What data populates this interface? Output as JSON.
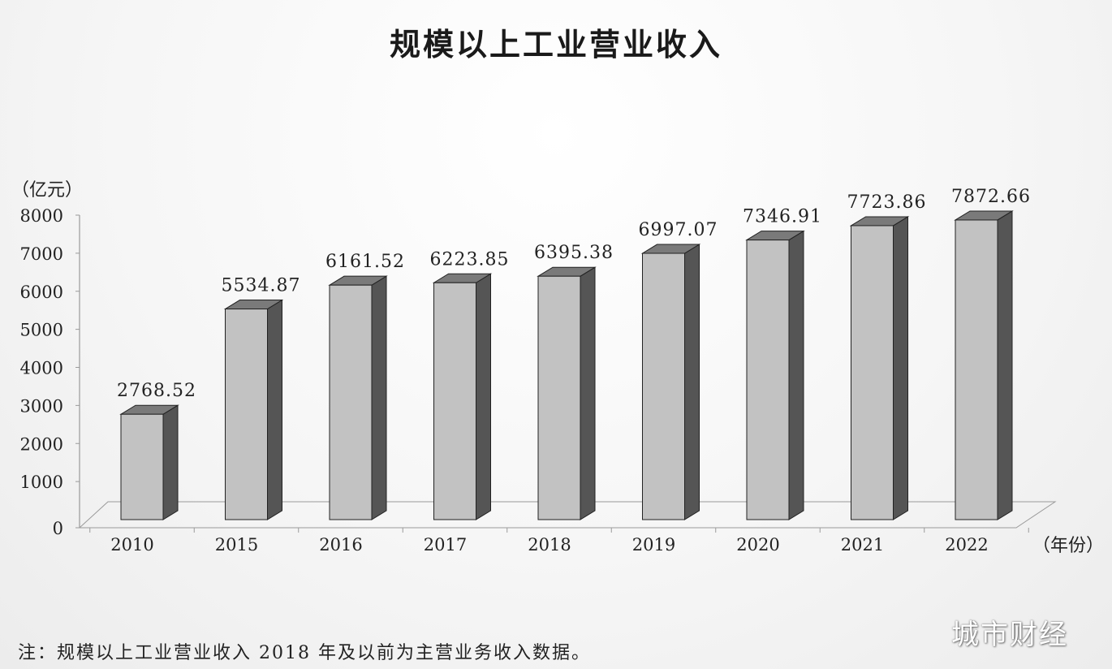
{
  "title": "规模以上工业营业收入",
  "chart_data": {
    "type": "bar",
    "categories": [
      "2010",
      "2015",
      "2016",
      "2017",
      "2018",
      "2019",
      "2020",
      "2021",
      "2022"
    ],
    "values": [
      2768.52,
      5534.87,
      6161.52,
      6223.85,
      6395.38,
      6997.07,
      7346.91,
      7723.86,
      7872.66
    ],
    "value_labels": [
      "2768.52",
      "5534.87",
      "6161.52",
      "6223.85",
      "6395.38",
      "6997.07",
      "7346.91",
      "7723.86",
      "7872.66"
    ],
    "ylabel": "（亿元）",
    "xlabel": "（年份）",
    "ylim": [
      0,
      8000
    ],
    "yticks": [
      "0",
      "1000",
      "2000",
      "3000",
      "4000",
      "5000",
      "6000",
      "7000",
      "8000"
    ],
    "style": "3d-bar",
    "grid": false,
    "legend": "none"
  },
  "colors": {
    "bar_front": "#c2c2c2",
    "bar_side": "#555555",
    "bar_top": "#7a7a7a",
    "axis": "#9a9a9a"
  },
  "note": "注：规模以上工业营业收入 2018 年及以前为主营业务收入数据。",
  "watermark": "城市财经"
}
